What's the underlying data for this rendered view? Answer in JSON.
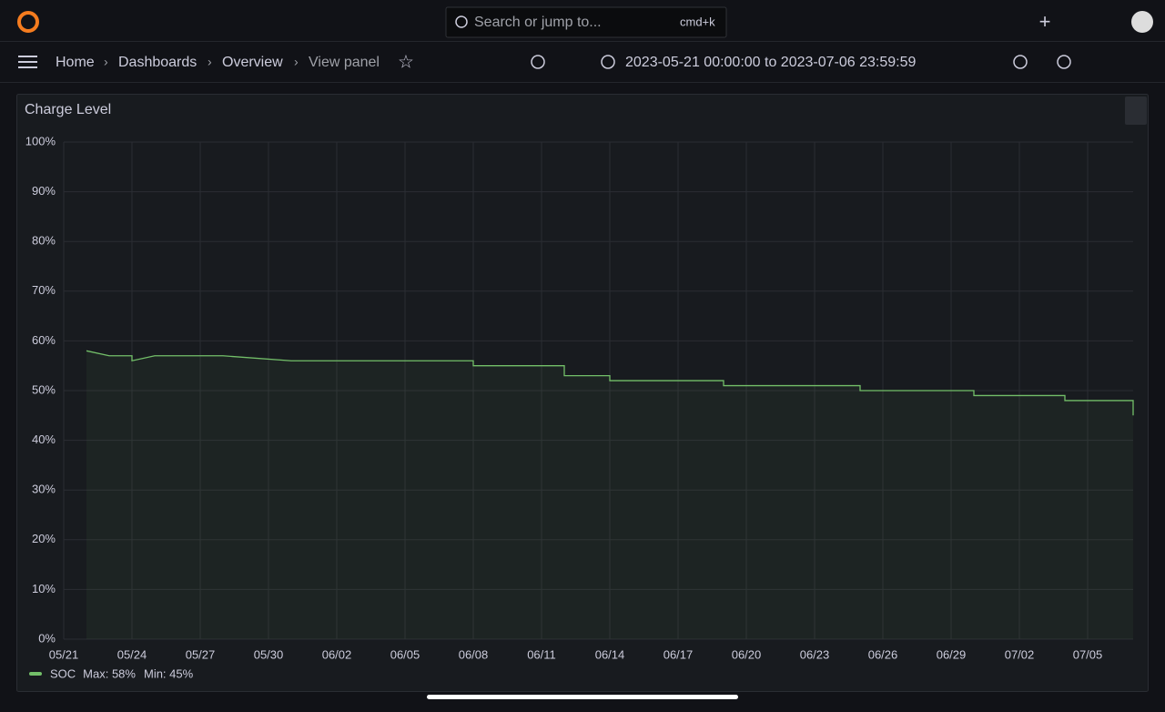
{
  "topbar": {
    "search": "Search or jump to...",
    "shortcut": "cmd+k"
  },
  "toolbar": {
    "breadcrumbs": [
      "Home",
      "Dashboards",
      "Overview",
      "View panel"
    ],
    "time_range": "2023-05-21 00:00:00 to 2023-07-06 23:59:59"
  },
  "panel": {
    "title": "Charge Level"
  },
  "chart_data": {
    "type": "line",
    "x": [
      "05/22",
      "05/23",
      "05/24",
      "05/24",
      "05/25",
      "05/28",
      "05/31",
      "06/08",
      "06/08",
      "06/12",
      "06/12",
      "06/14",
      "06/14",
      "06/19",
      "06/19",
      "06/25",
      "06/25",
      "06/30",
      "06/30",
      "07/04",
      "07/04",
      "07/07",
      "07/07"
    ],
    "series": [
      {
        "name": "SOC",
        "color": "#73bf69",
        "values": [
          58,
          57,
          57,
          56,
          57,
          57,
          56,
          56,
          55,
          55,
          53,
          53,
          52,
          52,
          51,
          51,
          50,
          50,
          49,
          49,
          48,
          48,
          45
        ]
      }
    ],
    "legend_stats": [
      "Max: 58%",
      "Min: 45%"
    ],
    "xlim": [
      "05/21",
      "07/07"
    ],
    "xticks": [
      "05/21",
      "05/24",
      "05/27",
      "05/30",
      "06/02",
      "06/05",
      "06/08",
      "06/11",
      "06/14",
      "06/17",
      "06/20",
      "06/23",
      "06/26",
      "06/29",
      "07/02",
      "07/05"
    ],
    "ylim": [
      0,
      100
    ],
    "yticks": [
      {
        "value": 0,
        "label": "0%"
      },
      {
        "value": 10,
        "label": "10%"
      },
      {
        "value": 20,
        "label": "20%"
      },
      {
        "value": 30,
        "label": "30%"
      },
      {
        "value": 40,
        "label": "40%"
      },
      {
        "value": 50,
        "label": "50%"
      },
      {
        "value": 60,
        "label": "60%"
      },
      {
        "value": 70,
        "label": "70%"
      },
      {
        "value": 80,
        "label": "80%"
      },
      {
        "value": 90,
        "label": "90%"
      },
      {
        "value": 100,
        "label": "100%"
      }
    ],
    "grid": true
  }
}
